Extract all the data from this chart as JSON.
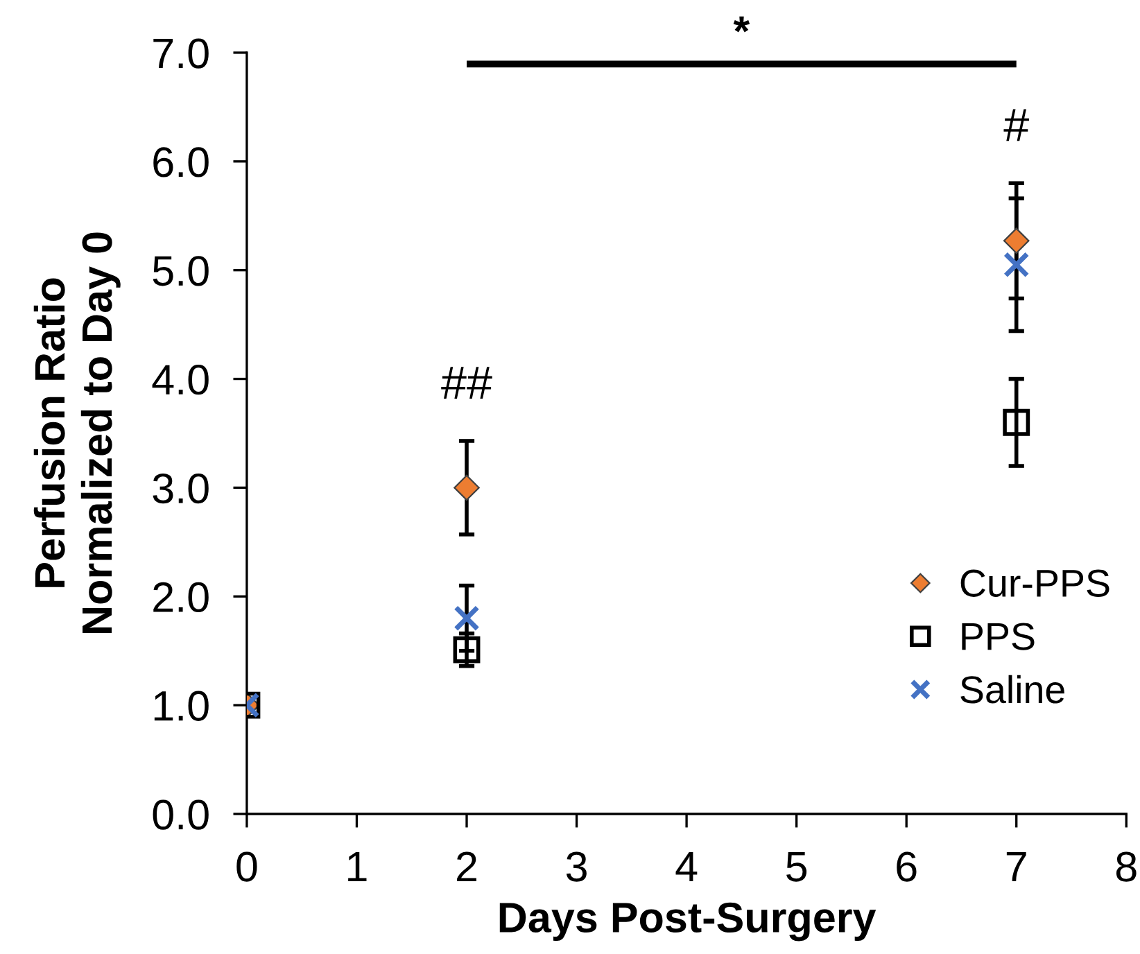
{
  "chart_data": {
    "type": "scatter",
    "xlabel": "Days Post-Surgery",
    "ylabel": "Perfusion Ratio\nNormalized to Day 0",
    "x": [
      0,
      2,
      7
    ],
    "series": [
      {
        "name": "Cur-PPS",
        "color": "#ed7d31",
        "marker": "diamond",
        "values": [
          1.0,
          3.0,
          5.27
        ],
        "errors": [
          null,
          0.43,
          0.53
        ]
      },
      {
        "name": "PPS",
        "color": "#000000",
        "marker": "square",
        "values": [
          1.0,
          1.51,
          3.6
        ],
        "errors": [
          null,
          0.15,
          0.4
        ]
      },
      {
        "name": "Saline",
        "color": "#4472c4",
        "marker": "cross",
        "values": [
          1.0,
          1.8,
          5.05
        ],
        "errors": [
          null,
          0.3,
          0.61
        ]
      }
    ],
    "xlim": [
      0,
      8
    ],
    "xticks": [
      0,
      1,
      2,
      3,
      4,
      5,
      6,
      7,
      8
    ],
    "ylim": [
      0,
      7
    ],
    "yticks": [
      {
        "value": 0,
        "label": "0.0"
      },
      {
        "value": 1,
        "label": "1.0"
      },
      {
        "value": 2,
        "label": "2.0"
      },
      {
        "value": 3,
        "label": "3.0"
      },
      {
        "value": 4,
        "label": "4.0"
      },
      {
        "value": 5,
        "label": "5.0"
      },
      {
        "value": 6,
        "label": "6.0"
      },
      {
        "value": 7,
        "label": "7.0"
      }
    ],
    "annotations": [
      "##",
      "#",
      "*"
    ],
    "grid": false,
    "legend": "bottom right"
  }
}
